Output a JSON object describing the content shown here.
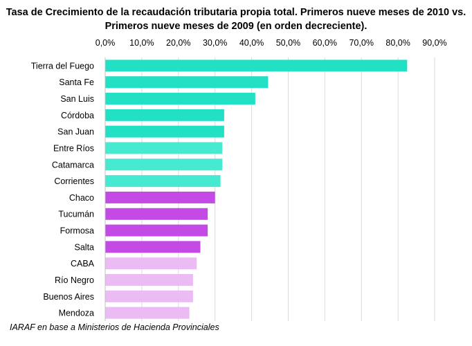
{
  "chart_data": {
    "type": "bar",
    "orientation": "horizontal",
    "title_lines": [
      "Tasa de Crecimiento de la recaudación tributaria propia total. Primeros nueve meses de 2010 vs.",
      "Primeros nueve meses de 2009 (en orden decreciente)."
    ],
    "xlabel": "",
    "ylabel": "",
    "x_axis_position": "top",
    "xlim": [
      0,
      90
    ],
    "x_ticks": [
      0,
      10,
      20,
      30,
      40,
      50,
      60,
      70,
      80,
      90
    ],
    "x_tick_labels": [
      "0,0%",
      "10,0%",
      "20,0%",
      "30,0%",
      "40,0%",
      "50,0%",
      "60,0%",
      "70,0%",
      "80,0%",
      "90,0%"
    ],
    "grid": "vertical",
    "legend": "none",
    "categories": [
      "Tierra del Fuego",
      "Santa Fe",
      "San Luis",
      "Córdoba",
      "San Juan",
      "Entre Ríos",
      "Catamarca",
      "Corrientes",
      "Chaco",
      "Tucumán",
      "Formosa",
      "Salta",
      "CABA",
      "Río Negro",
      "Buenos Aires",
      "Mendoza"
    ],
    "values": [
      82.5,
      44.5,
      41.0,
      32.5,
      32.5,
      32.0,
      32.0,
      31.5,
      30.0,
      28.0,
      28.0,
      26.0,
      25.0,
      24.0,
      24.0,
      23.0
    ],
    "bar_colors": [
      "#22e0c4",
      "#22e0c4",
      "#22e0c4",
      "#22e0c4",
      "#22e0c4",
      "#46ead0",
      "#46ead0",
      "#46ead0",
      "#c44ae6",
      "#c44ae6",
      "#c44ae6",
      "#c44ae6",
      "#ebbcf3",
      "#ebbcf3",
      "#ebbcf3",
      "#ebbcf3"
    ],
    "source": "IARAF en base a Ministerios de Hacienda Provinciales"
  }
}
